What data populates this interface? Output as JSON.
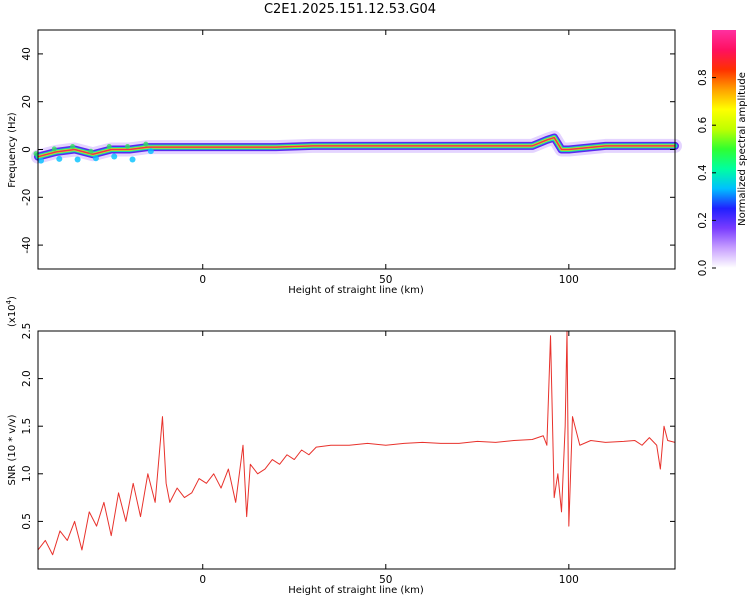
{
  "figure_title": "C2E1.2025.151.12.53.G04",
  "chart_data": [
    {
      "type": "heatmap",
      "title": "C2E1.2025.151.12.53.G04",
      "xlabel": "Height of straight line (km)",
      "ylabel": "Frequency (Hz)",
      "xlim": [
        -45,
        129
      ],
      "ylim": [
        -50,
        50
      ],
      "xticks": [
        0,
        50,
        100
      ],
      "xtick_labels": [
        "0",
        "50",
        "100"
      ],
      "yticks": [
        -40,
        -20,
        0,
        20,
        40
      ],
      "ytick_labels": [
        "-40",
        "-20",
        "0",
        "20",
        "40"
      ],
      "colorbar": {
        "label": "Normalized spectral amplitude",
        "range": [
          0,
          1
        ],
        "ticks": [
          0.0,
          0.2,
          0.4,
          0.6,
          0.8
        ],
        "tick_labels": [
          "0.0",
          "0.2",
          "0.4",
          "0.6",
          "0.8"
        ],
        "colors": [
          "#ffffff",
          "#c8a0ff",
          "#7a3cff",
          "#2020ff",
          "#00c0ff",
          "#00ffa0",
          "#30ff30",
          "#c0ff00",
          "#ffff00",
          "#ffa000",
          "#ff3000",
          "#ff1060",
          "#ff30a0"
        ]
      },
      "ridge": [
        {
          "x": -45,
          "y": -3
        },
        {
          "x": -40,
          "y": -1
        },
        {
          "x": -35,
          "y": 0
        },
        {
          "x": -30,
          "y": -2
        },
        {
          "x": -25,
          "y": 0
        },
        {
          "x": -20,
          "y": 0
        },
        {
          "x": -15,
          "y": 1
        },
        {
          "x": -10,
          "y": 1
        },
        {
          "x": 0,
          "y": 1
        },
        {
          "x": 10,
          "y": 1
        },
        {
          "x": 20,
          "y": 1
        },
        {
          "x": 30,
          "y": 1.5
        },
        {
          "x": 50,
          "y": 1.5
        },
        {
          "x": 70,
          "y": 1.5
        },
        {
          "x": 90,
          "y": 1.5
        },
        {
          "x": 94,
          "y": 4
        },
        {
          "x": 96,
          "y": 5
        },
        {
          "x": 98,
          "y": 0
        },
        {
          "x": 100,
          "y": 0
        },
        {
          "x": 110,
          "y": 1.5
        },
        {
          "x": 129,
          "y": 1.5
        }
      ]
    },
    {
      "type": "line",
      "xlabel": "Height of straight line (km)",
      "ylabel": "SNR (10 * v/v)",
      "y_multiplier": "(x10^4)",
      "y_multiplier_base": "(x10",
      "y_multiplier_exp": "4",
      "y_multiplier_close": ")",
      "xlim": [
        -45,
        129
      ],
      "ylim": [
        0,
        2.5
      ],
      "xticks": [
        0,
        50,
        100
      ],
      "xtick_labels": [
        "0",
        "50",
        "100"
      ],
      "yticks": [
        0.5,
        1.0,
        1.5,
        2.0,
        2.5
      ],
      "ytick_labels": [
        "0.5",
        "1.0",
        "1.5",
        "2.0",
        "2.5"
      ],
      "series": [
        {
          "color": "#e8322c",
          "x": [
            -45,
            -43,
            -41,
            -39,
            -37,
            -35,
            -33,
            -31,
            -29,
            -27,
            -25,
            -23,
            -21,
            -19,
            -17,
            -15,
            -13,
            -11,
            -10,
            -9,
            -7,
            -5,
            -3,
            -1,
            1,
            3,
            5,
            7,
            9,
            11,
            12,
            13,
            15,
            17,
            19,
            21,
            23,
            25,
            27,
            29,
            31,
            35,
            40,
            45,
            50,
            55,
            60,
            65,
            70,
            75,
            80,
            85,
            90,
            93,
            94,
            95,
            96,
            97,
            98,
            99,
            99.5,
            100,
            101,
            103,
            106,
            110,
            115,
            118,
            120,
            122,
            124,
            125,
            126,
            127,
            129
          ],
          "y": [
            0.2,
            0.3,
            0.15,
            0.4,
            0.3,
            0.5,
            0.2,
            0.6,
            0.45,
            0.7,
            0.35,
            0.8,
            0.5,
            0.9,
            0.55,
            1.0,
            0.7,
            1.6,
            0.9,
            0.7,
            0.85,
            0.75,
            0.8,
            0.95,
            0.9,
            1.0,
            0.85,
            1.05,
            0.7,
            1.3,
            0.55,
            1.1,
            1.0,
            1.05,
            1.15,
            1.1,
            1.2,
            1.15,
            1.25,
            1.2,
            1.28,
            1.3,
            1.3,
            1.32,
            1.3,
            1.32,
            1.33,
            1.32,
            1.32,
            1.34,
            1.33,
            1.35,
            1.36,
            1.4,
            1.3,
            2.45,
            0.75,
            1.0,
            0.6,
            1.5,
            2.5,
            0.45,
            1.6,
            1.3,
            1.35,
            1.33,
            1.34,
            1.35,
            1.3,
            1.38,
            1.3,
            1.05,
            1.5,
            1.35,
            1.33
          ]
        }
      ]
    }
  ]
}
